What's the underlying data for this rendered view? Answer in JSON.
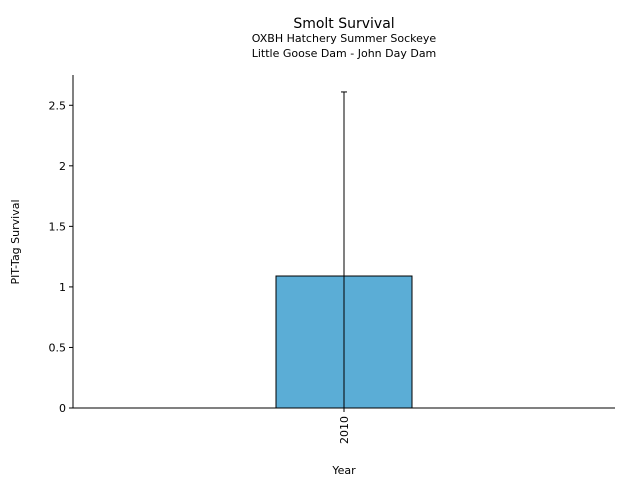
{
  "chart_data": {
    "type": "bar",
    "title": "Smolt Survival",
    "subtitle_lines": [
      "OXBH Hatchery Summer Sockeye",
      "Little Goose Dam - John Day Dam"
    ],
    "xlabel": "Year",
    "ylabel": "PIT-Tag Survival",
    "categories": [
      "2010"
    ],
    "values": [
      1.09
    ],
    "error_upper": [
      2.61
    ],
    "error_lower": [
      0
    ],
    "ylim": [
      0,
      2.75
    ],
    "yticks": [
      0,
      0.5,
      1,
      1.5,
      2,
      2.5
    ],
    "ytick_labels": [
      "0",
      "0.5",
      "1",
      "1.5",
      "2",
      "2.5"
    ],
    "bar_color": "#5badd6",
    "grid": false,
    "legend": "none"
  }
}
